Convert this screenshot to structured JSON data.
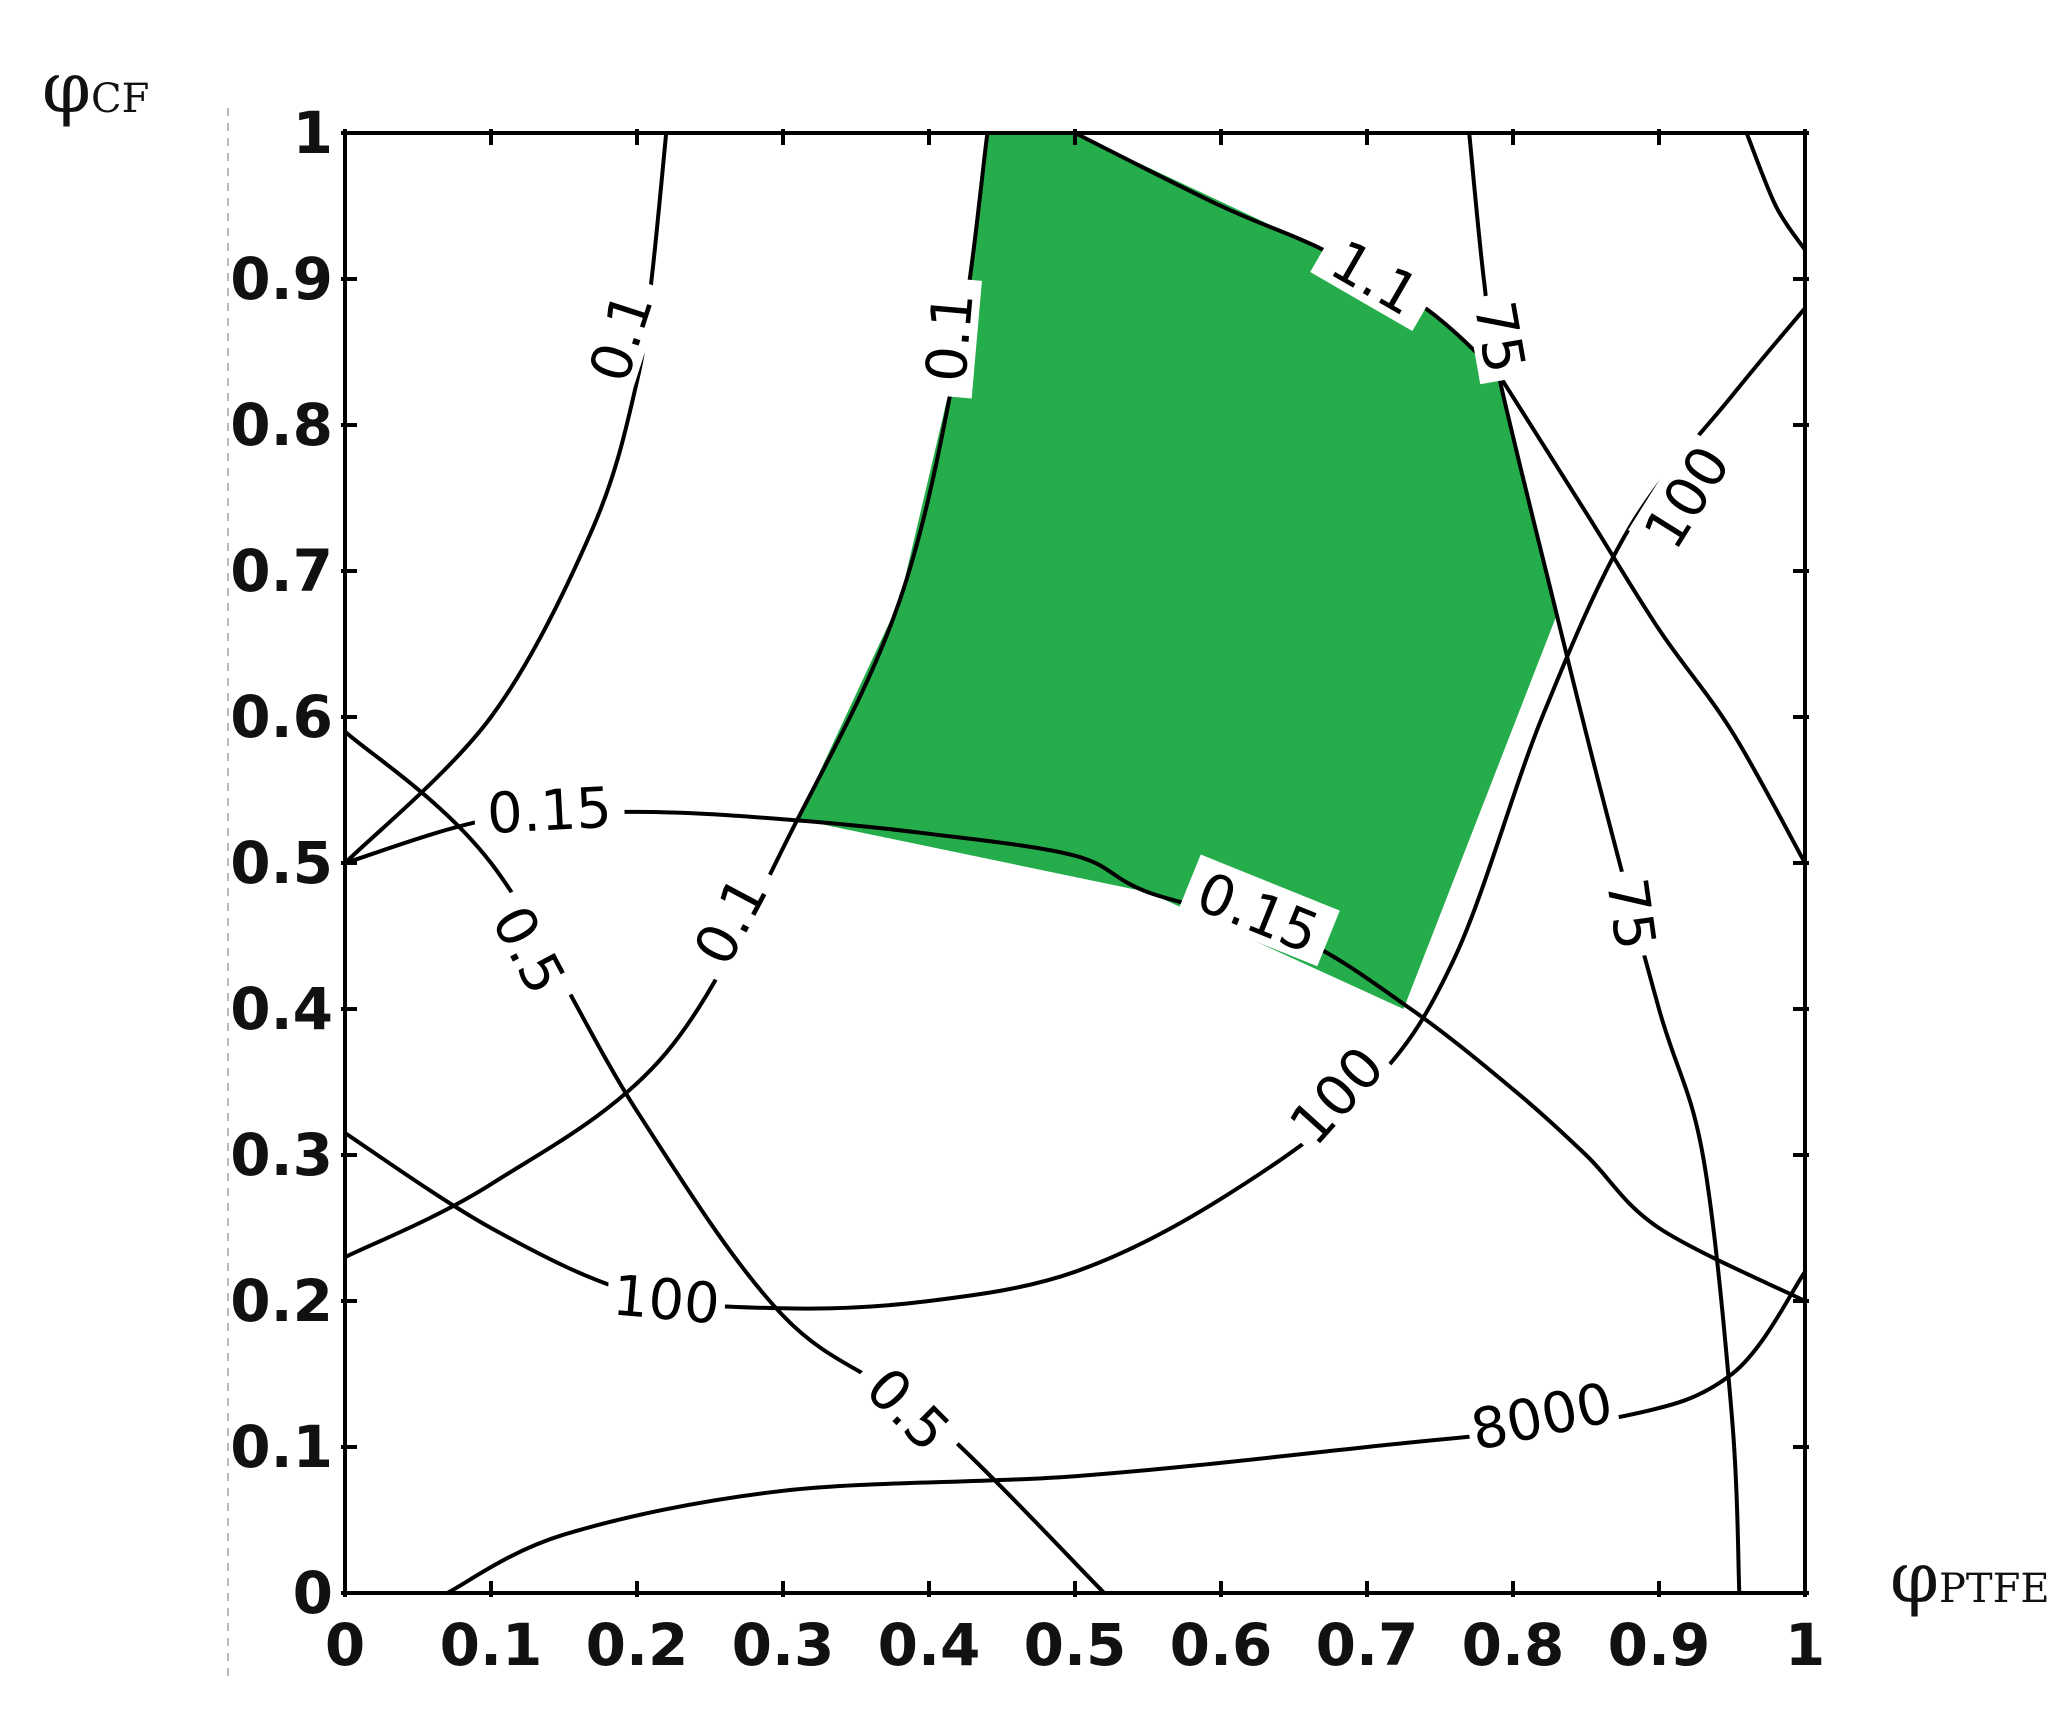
{
  "chart_data": {
    "type": "contour",
    "title": "",
    "xlabel": {
      "symbol": "φ",
      "subscript": "PTFE"
    },
    "ylabel": {
      "symbol": "φ",
      "subscript": "CF"
    },
    "xlim": [
      0,
      1
    ],
    "ylim": [
      0,
      1
    ],
    "x_ticks": [
      "0",
      "0.1",
      "0.2",
      "0.3",
      "0.4",
      "0.5",
      "0.6",
      "0.7",
      "0.8",
      "0.9",
      "1"
    ],
    "y_ticks": [
      "0",
      "0.1",
      "0.2",
      "0.3",
      "0.4",
      "0.5",
      "0.6",
      "0.7",
      "0.8",
      "0.9",
      "1"
    ],
    "grid": false,
    "feasible_region": {
      "color": "#26ad4b",
      "points": [
        [
          0.44,
          1.0
        ],
        [
          0.5,
          1.0
        ],
        [
          0.67,
          0.92
        ],
        [
          0.74,
          0.88
        ],
        [
          0.79,
          0.835
        ],
        [
          0.83,
          0.67
        ],
        [
          0.725,
          0.4
        ],
        [
          0.55,
          0.48
        ],
        [
          0.31,
          0.53
        ],
        [
          0.38,
          0.68
        ],
        [
          0.42,
          0.85
        ]
      ]
    },
    "series": [
      {
        "name": "0.1",
        "points": [
          [
            0.0,
            0.5
          ],
          [
            0.1,
            0.6
          ],
          [
            0.17,
            0.73
          ],
          [
            0.2,
            0.83
          ],
          [
            0.21,
            0.9
          ],
          [
            0.22,
            1.0
          ]
        ]
      },
      {
        "name": "0.1",
        "points": [
          [
            0.44,
            1.0
          ],
          [
            0.42,
            0.85
          ],
          [
            0.38,
            0.68
          ],
          [
            0.31,
            0.53
          ],
          [
            0.22,
            0.37
          ],
          [
            0.1,
            0.28
          ],
          [
            0.0,
            0.23
          ]
        ]
      },
      {
        "name": "0.15",
        "points": [
          [
            0.0,
            0.5
          ],
          [
            0.1,
            0.53
          ],
          [
            0.2,
            0.535
          ],
          [
            0.3,
            0.53
          ],
          [
            0.4,
            0.52
          ],
          [
            0.5,
            0.505
          ],
          [
            0.55,
            0.48
          ],
          [
            0.65,
            0.45
          ],
          [
            0.73,
            0.4
          ],
          [
            0.8,
            0.345
          ],
          [
            0.85,
            0.3
          ],
          [
            0.9,
            0.25
          ],
          [
            1.0,
            0.2
          ]
        ]
      },
      {
        "name": "1.1",
        "points": [
          [
            0.5,
            1.0
          ],
          [
            0.6,
            0.95
          ],
          [
            0.67,
            0.92
          ],
          [
            0.74,
            0.88
          ],
          [
            0.79,
            0.835
          ]
        ]
      },
      {
        "name": "75",
        "points": [
          [
            0.77,
            1.0
          ],
          [
            0.78,
            0.9
          ],
          [
            0.79,
            0.835
          ],
          [
            0.83,
            0.67
          ],
          [
            0.86,
            0.55
          ],
          [
            0.9,
            0.4
          ],
          [
            0.93,
            0.3
          ],
          [
            0.95,
            0.12
          ],
          [
            0.955,
            0.0
          ]
        ]
      },
      {
        "name": "100",
        "points": [
          [
            0.79,
            0.835
          ],
          [
            0.85,
            0.74
          ],
          [
            0.9,
            0.66
          ],
          [
            0.95,
            0.59
          ],
          [
            1.0,
            0.5
          ]
        ]
      },
      {
        "name": "100",
        "points": [
          [
            0.96,
            1.0
          ],
          [
            0.98,
            0.95
          ],
          [
            1.0,
            0.92
          ]
        ]
      },
      {
        "name": "100",
        "points": [
          [
            0.0,
            0.315
          ],
          [
            0.1,
            0.25
          ],
          [
            0.2,
            0.205
          ],
          [
            0.3,
            0.195
          ],
          [
            0.4,
            0.2
          ],
          [
            0.5,
            0.22
          ],
          [
            0.6,
            0.27
          ],
          [
            0.7,
            0.345
          ],
          [
            0.76,
            0.435
          ],
          [
            0.82,
            0.6
          ],
          [
            0.88,
            0.73
          ],
          [
            0.95,
            0.82
          ],
          [
            1.0,
            0.88
          ]
        ]
      },
      {
        "name": "0.5",
        "points": [
          [
            0.0,
            0.59
          ],
          [
            0.1,
            0.5
          ],
          [
            0.2,
            0.33
          ],
          [
            0.3,
            0.19
          ],
          [
            0.4,
            0.12
          ],
          [
            0.52,
            0.0
          ]
        ]
      },
      {
        "name": "8000",
        "points": [
          [
            0.07,
            0.0
          ],
          [
            0.15,
            0.04
          ],
          [
            0.3,
            0.07
          ],
          [
            0.5,
            0.08
          ],
          [
            0.7,
            0.1
          ],
          [
            0.87,
            0.12
          ],
          [
            0.95,
            0.15
          ],
          [
            1.0,
            0.22
          ]
        ]
      }
    ],
    "labels": [
      {
        "text": "0.1",
        "x": 0.19,
        "y": 0.86,
        "angle": -72
      },
      {
        "text": "0.1",
        "x": 0.415,
        "y": 0.86,
        "angle": -85
      },
      {
        "text": "0.1",
        "x": 0.265,
        "y": 0.46,
        "angle": -62
      },
      {
        "text": "0.15",
        "x": 0.14,
        "y": 0.535,
        "angle": -3
      },
      {
        "text": "0.15",
        "x": 0.625,
        "y": 0.465,
        "angle": 22
      },
      {
        "text": "1.1",
        "x": 0.705,
        "y": 0.9,
        "angle": 30
      },
      {
        "text": "75",
        "x": 0.79,
        "y": 0.86,
        "angle": 80
      },
      {
        "text": "75",
        "x": 0.88,
        "y": 0.465,
        "angle": 82
      },
      {
        "text": "100",
        "x": 0.92,
        "y": 0.75,
        "angle": -58
      },
      {
        "text": "100",
        "x": 0.68,
        "y": 0.34,
        "angle": -48
      },
      {
        "text": "100",
        "x": 0.22,
        "y": 0.2,
        "angle": 5
      },
      {
        "text": "0.5",
        "x": 0.125,
        "y": 0.44,
        "angle": 62
      },
      {
        "text": "0.5",
        "x": 0.385,
        "y": 0.125,
        "angle": 45
      },
      {
        "text": "8000",
        "x": 0.82,
        "y": 0.12,
        "angle": -12
      }
    ]
  }
}
